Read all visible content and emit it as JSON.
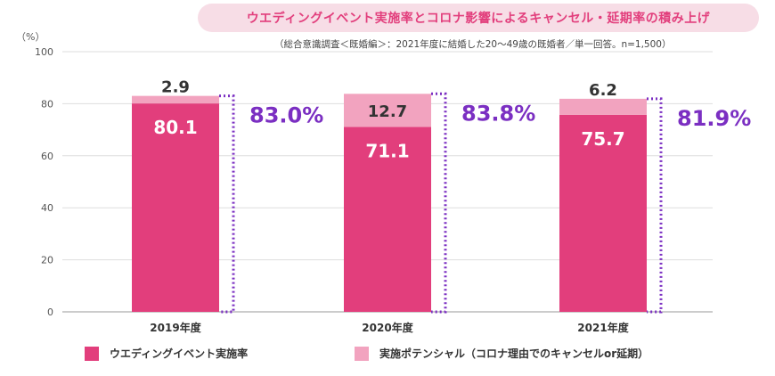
{
  "header": {
    "title": "ウエディングイベント実施率とコロナ影響によるキャンセル・延期率の積み上げ",
    "subtitle": "（総合意識調査＜既婚編＞：2021年度に結婚した20～49歳の既婚者／単一回答。n=1,500）",
    "unit": "（%）"
  },
  "colors": {
    "actual": "#e23e7c",
    "potential": "#f2a3bf",
    "total_text": "#7b2fc2",
    "dotted_box": "#7b2fc2",
    "grid": "#dddddd",
    "axis": "#999999"
  },
  "chart_data": {
    "type": "bar",
    "stacked": true,
    "categories": [
      "2019年度",
      "2020年度",
      "2021年度"
    ],
    "series": [
      {
        "name": "ウエディングイベント実施率",
        "values": [
          80.1,
          71.1,
          75.7
        ]
      },
      {
        "name": "実施ポテンシャル（コロナ理由でのキャンセルor延期）",
        "values": [
          2.9,
          12.7,
          6.2
        ]
      }
    ],
    "totals": [
      "83.0%",
      "83.8%",
      "81.9%"
    ],
    "ylim": [
      0,
      100
    ],
    "yticks": [
      0,
      20,
      40,
      60,
      80,
      100
    ],
    "grid": true,
    "legend_position": "bottom"
  },
  "legend": [
    {
      "label": "ウエディングイベント実施率",
      "color": "#e23e7c"
    },
    {
      "label": "実施ポテンシャル（コロナ理由でのキャンセルor延期）",
      "color": "#f2a3bf"
    }
  ]
}
